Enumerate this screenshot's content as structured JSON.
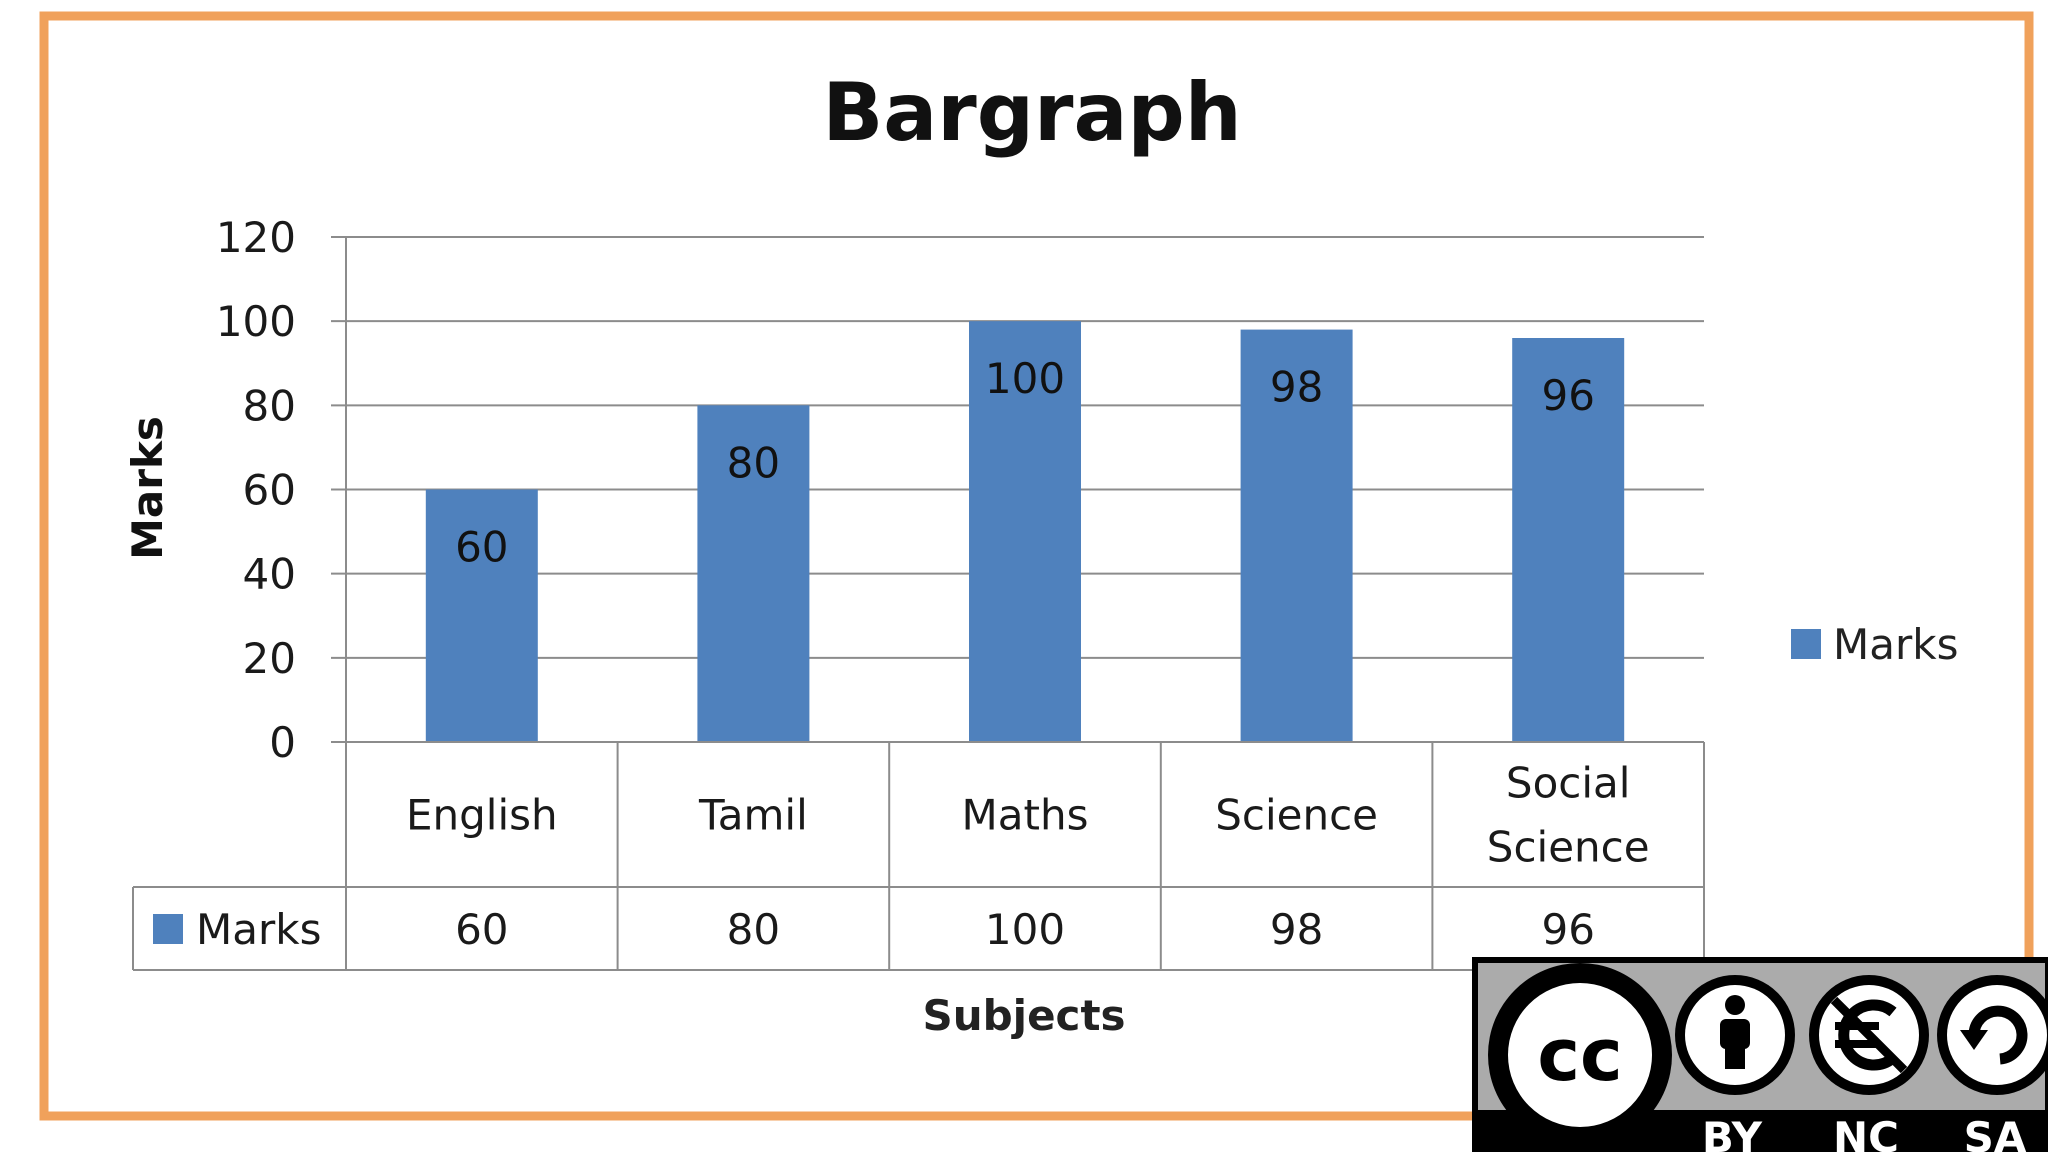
{
  "chart_data": {
    "type": "bar",
    "title": "Bargraph",
    "xlabel": "Subjects",
    "ylabel": "Marks",
    "categories": [
      [
        "English"
      ],
      [
        "Tamil"
      ],
      [
        "Maths"
      ],
      [
        "Science"
      ],
      [
        "Social",
        "Science"
      ]
    ],
    "series": [
      {
        "name": "Marks",
        "values": [
          60,
          80,
          100,
          98,
          96
        ]
      }
    ],
    "ylim": [
      0,
      120
    ],
    "yticks": [
      0,
      20,
      40,
      60,
      80,
      100,
      120
    ],
    "grid": true,
    "legend": "right",
    "data_table": true,
    "data_labels": "inside-top",
    "colors": {
      "bar": "#4f81bd",
      "frame": "#f0a15b",
      "grid": "#8c8c8c",
      "text": "#1a1a1a"
    }
  },
  "license_badge": {
    "icons": [
      "cc-icon",
      "by-person-icon",
      "nc-euro-icon",
      "sa-share-icon"
    ],
    "labels": [
      "BY",
      "NC",
      "SA"
    ]
  }
}
